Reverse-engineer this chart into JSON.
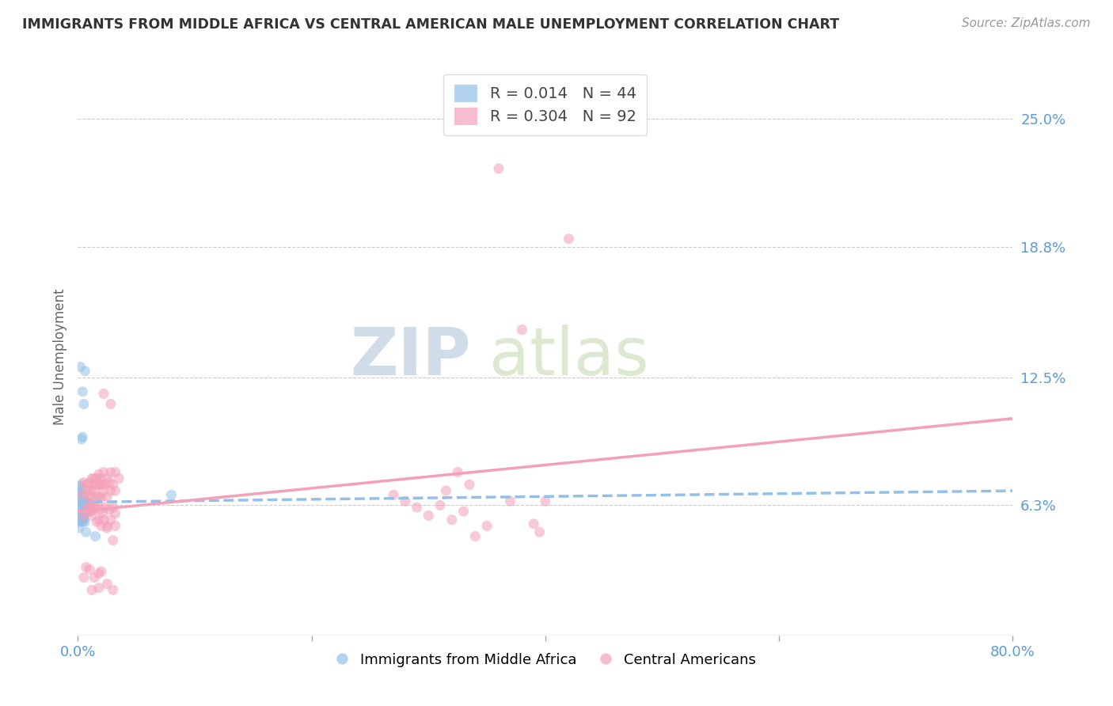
{
  "title": "IMMIGRANTS FROM MIDDLE AFRICA VS CENTRAL AMERICAN MALE UNEMPLOYMENT CORRELATION CHART",
  "source": "Source: ZipAtlas.com",
  "ylabel": "Male Unemployment",
  "yticks": [
    0.0,
    0.063,
    0.125,
    0.188,
    0.25
  ],
  "ytick_labels": [
    "",
    "6.3%",
    "12.5%",
    "18.8%",
    "25.0%"
  ],
  "xlim": [
    0.0,
    0.8
  ],
  "ylim": [
    0.0,
    0.27
  ],
  "watermark_zip": "ZIP",
  "watermark_atlas": "atlas",
  "legend_label1": "Immigrants from Middle Africa",
  "legend_label2": "Central Americans",
  "blue_color": "#92c0e8",
  "pink_color": "#f4a0b8",
  "blue_scatter": [
    [
      0.001,
      0.065
    ],
    [
      0.002,
      0.072
    ],
    [
      0.002,
      0.068
    ],
    [
      0.003,
      0.069
    ],
    [
      0.003,
      0.073
    ],
    [
      0.003,
      0.065
    ],
    [
      0.004,
      0.064
    ],
    [
      0.004,
      0.071
    ],
    [
      0.004,
      0.063
    ],
    [
      0.005,
      0.068
    ],
    [
      0.005,
      0.066
    ],
    [
      0.005,
      0.063
    ],
    [
      0.006,
      0.063
    ],
    [
      0.006,
      0.065
    ],
    [
      0.006,
      0.062
    ],
    [
      0.007,
      0.064
    ],
    [
      0.007,
      0.065
    ],
    [
      0.007,
      0.063
    ],
    [
      0.008,
      0.062
    ],
    [
      0.008,
      0.063
    ],
    [
      0.009,
      0.064
    ],
    [
      0.002,
      0.13
    ],
    [
      0.004,
      0.118
    ],
    [
      0.005,
      0.112
    ],
    [
      0.006,
      0.128
    ],
    [
      0.003,
      0.095
    ],
    [
      0.004,
      0.096
    ],
    [
      0.003,
      0.058
    ],
    [
      0.004,
      0.057
    ],
    [
      0.004,
      0.055
    ],
    [
      0.005,
      0.057
    ],
    [
      0.005,
      0.056
    ],
    [
      0.006,
      0.055
    ],
    [
      0.007,
      0.05
    ],
    [
      0.008,
      0.06
    ],
    [
      0.009,
      0.06
    ],
    [
      0.01,
      0.063
    ],
    [
      0.015,
      0.048
    ],
    [
      0.003,
      0.06
    ],
    [
      0.002,
      0.061
    ],
    [
      0.002,
      0.056
    ],
    [
      0.001,
      0.055
    ],
    [
      0.001,
      0.052
    ],
    [
      0.08,
      0.068
    ]
  ],
  "pink_scatter": [
    [
      0.004,
      0.068
    ],
    [
      0.005,
      0.074
    ],
    [
      0.005,
      0.058
    ],
    [
      0.007,
      0.07
    ],
    [
      0.008,
      0.073
    ],
    [
      0.008,
      0.062
    ],
    [
      0.009,
      0.068
    ],
    [
      0.009,
      0.06
    ],
    [
      0.01,
      0.074
    ],
    [
      0.01,
      0.064
    ],
    [
      0.011,
      0.07
    ],
    [
      0.011,
      0.06
    ],
    [
      0.012,
      0.076
    ],
    [
      0.012,
      0.067
    ],
    [
      0.012,
      0.058
    ],
    [
      0.013,
      0.073
    ],
    [
      0.013,
      0.063
    ],
    [
      0.014,
      0.076
    ],
    [
      0.014,
      0.07
    ],
    [
      0.014,
      0.061
    ],
    [
      0.015,
      0.073
    ],
    [
      0.015,
      0.062
    ],
    [
      0.016,
      0.076
    ],
    [
      0.016,
      0.067
    ],
    [
      0.016,
      0.055
    ],
    [
      0.017,
      0.073
    ],
    [
      0.017,
      0.063
    ],
    [
      0.018,
      0.078
    ],
    [
      0.018,
      0.067
    ],
    [
      0.018,
      0.056
    ],
    [
      0.019,
      0.073
    ],
    [
      0.019,
      0.061
    ],
    [
      0.02,
      0.076
    ],
    [
      0.02,
      0.067
    ],
    [
      0.02,
      0.053
    ],
    [
      0.021,
      0.073
    ],
    [
      0.021,
      0.059
    ],
    [
      0.022,
      0.079
    ],
    [
      0.022,
      0.07
    ],
    [
      0.022,
      0.056
    ],
    [
      0.023,
      0.073
    ],
    [
      0.023,
      0.062
    ],
    [
      0.025,
      0.076
    ],
    [
      0.025,
      0.067
    ],
    [
      0.025,
      0.053
    ],
    [
      0.027,
      0.074
    ],
    [
      0.027,
      0.061
    ],
    [
      0.028,
      0.079
    ],
    [
      0.028,
      0.07
    ],
    [
      0.028,
      0.056
    ],
    [
      0.03,
      0.073
    ],
    [
      0.03,
      0.062
    ],
    [
      0.032,
      0.079
    ],
    [
      0.032,
      0.07
    ],
    [
      0.032,
      0.053
    ],
    [
      0.005,
      0.028
    ],
    [
      0.012,
      0.022
    ],
    [
      0.018,
      0.023
    ],
    [
      0.025,
      0.025
    ],
    [
      0.03,
      0.022
    ],
    [
      0.022,
      0.117
    ],
    [
      0.028,
      0.112
    ],
    [
      0.018,
      0.03
    ],
    [
      0.014,
      0.028
    ],
    [
      0.01,
      0.032
    ],
    [
      0.007,
      0.033
    ],
    [
      0.02,
      0.031
    ],
    [
      0.025,
      0.052
    ],
    [
      0.03,
      0.046
    ],
    [
      0.035,
      0.076
    ],
    [
      0.032,
      0.059
    ],
    [
      0.38,
      0.148
    ],
    [
      0.42,
      0.192
    ],
    [
      0.36,
      0.226
    ],
    [
      0.33,
      0.06
    ],
    [
      0.35,
      0.053
    ],
    [
      0.37,
      0.065
    ],
    [
      0.34,
      0.048
    ],
    [
      0.31,
      0.063
    ],
    [
      0.29,
      0.062
    ],
    [
      0.28,
      0.065
    ],
    [
      0.27,
      0.068
    ],
    [
      0.3,
      0.058
    ],
    [
      0.32,
      0.056
    ],
    [
      0.315,
      0.07
    ],
    [
      0.325,
      0.079
    ],
    [
      0.335,
      0.073
    ],
    [
      0.39,
      0.054
    ],
    [
      0.395,
      0.05
    ],
    [
      0.4,
      0.065
    ]
  ],
  "blue_line_x": [
    0.0,
    0.8
  ],
  "blue_line_y": [
    0.0645,
    0.07
  ],
  "pink_line_x": [
    0.0,
    0.8
  ],
  "pink_line_y": [
    0.06,
    0.105
  ]
}
